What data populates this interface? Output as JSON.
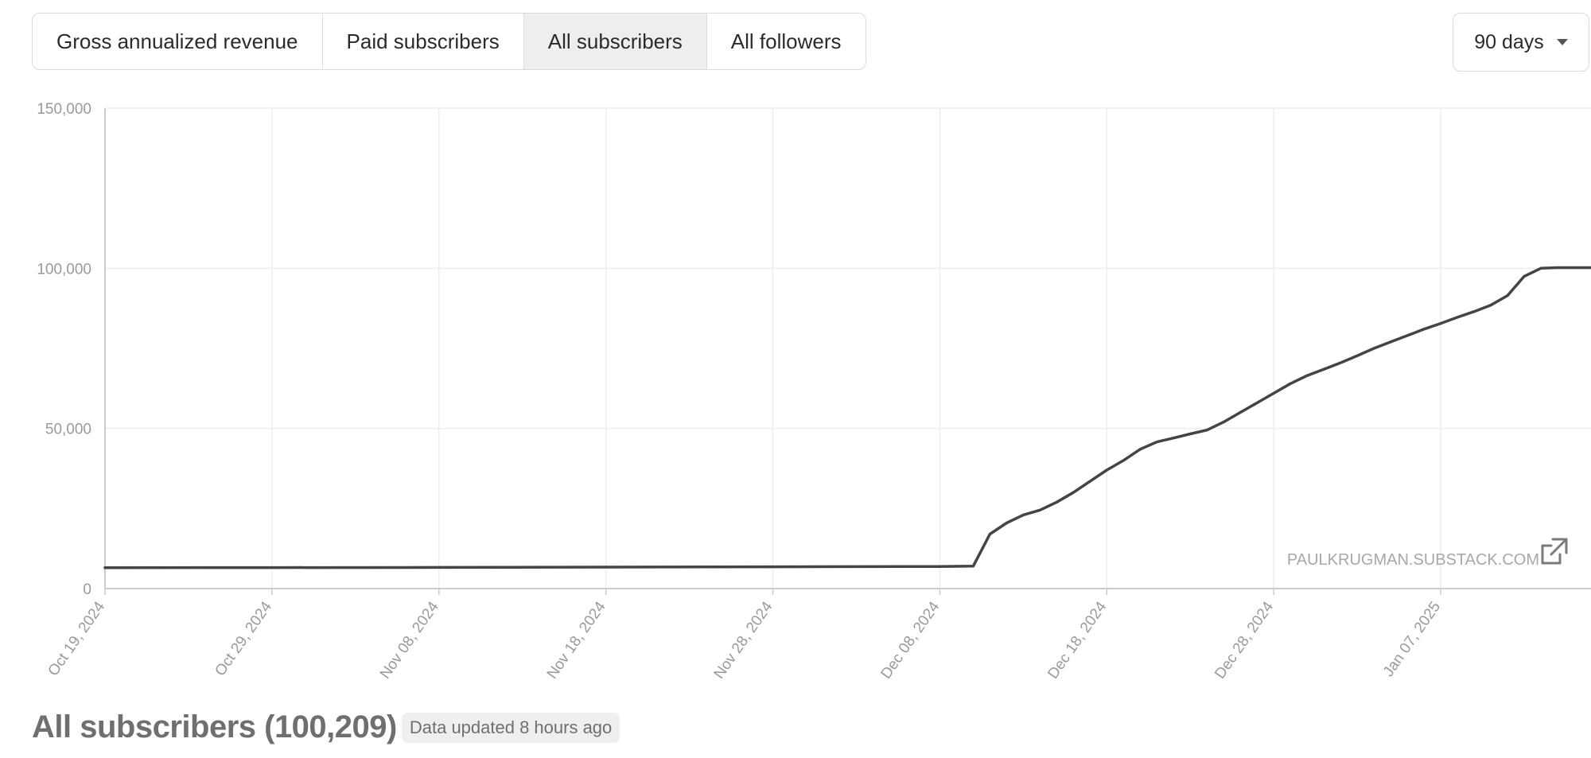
{
  "tabs": [
    {
      "label": "Gross annualized revenue",
      "active": false
    },
    {
      "label": "Paid subscribers",
      "active": false
    },
    {
      "label": "All subscribers",
      "active": true
    },
    {
      "label": "All followers",
      "active": false
    }
  ],
  "range_select": {
    "value": "90 days"
  },
  "watermark": {
    "text": "PAULKRUGMAN.SUBSTACK.COM",
    "icon": "external-link-icon"
  },
  "footer": {
    "title": "All subscribers (100,209)",
    "badge": "Data updated 8 hours ago"
  },
  "colors": {
    "line": "#444444",
    "grid": "#eeeeee",
    "axis": "#cccccc",
    "tick_text": "#9a9a9a"
  },
  "chart_data": {
    "type": "line",
    "ylim": [
      0,
      150000
    ],
    "yticks": [
      0,
      50000,
      100000,
      150000
    ],
    "ytick_labels": [
      "0",
      "50,000",
      "100,000",
      "150,000"
    ],
    "xlim": [
      "2024-10-19",
      "2025-01-16"
    ],
    "xtick_labels": [
      "Oct 19, 2024",
      "Oct 29, 2024",
      "Nov 08, 2024",
      "Nov 18, 2024",
      "Nov 28, 2024",
      "Dec 08, 2024",
      "Dec 18, 2024",
      "Dec 28, 2024",
      "Jan 07, 2025"
    ],
    "grid": true,
    "series": [
      {
        "x": [
          "2024-10-19",
          "2024-10-29",
          "2024-11-08",
          "2024-11-18",
          "2024-11-28",
          "2024-12-08",
          "2024-12-10",
          "2024-12-11",
          "2024-12-12",
          "2024-12-13",
          "2024-12-14",
          "2024-12-15",
          "2024-12-16",
          "2024-12-17",
          "2024-12-18",
          "2024-12-19",
          "2024-12-20",
          "2024-12-21",
          "2024-12-22",
          "2024-12-23",
          "2024-12-24",
          "2024-12-25",
          "2024-12-26",
          "2024-12-27",
          "2024-12-28",
          "2024-12-29",
          "2024-12-30",
          "2024-12-31",
          "2025-01-01",
          "2025-01-02",
          "2025-01-03",
          "2025-01-04",
          "2025-01-05",
          "2025-01-06",
          "2025-01-07",
          "2025-01-08",
          "2025-01-09",
          "2025-01-10",
          "2025-01-11",
          "2025-01-12",
          "2025-01-13",
          "2025-01-14",
          "2025-01-15",
          "2025-01-16"
        ],
        "values": [
          6500,
          6550,
          6600,
          6700,
          6800,
          6900,
          7000,
          17000,
          20500,
          23000,
          24500,
          27000,
          30000,
          33500,
          37000,
          40000,
          43500,
          45800,
          47000,
          48300,
          49500,
          52000,
          55000,
          58000,
          61000,
          64000,
          66500,
          68500,
          70500,
          72700,
          75000,
          77000,
          79000,
          81000,
          82800,
          84700,
          86500,
          88500,
          91500,
          97500,
          100000,
          100209,
          100209,
          100209
        ]
      }
    ]
  }
}
